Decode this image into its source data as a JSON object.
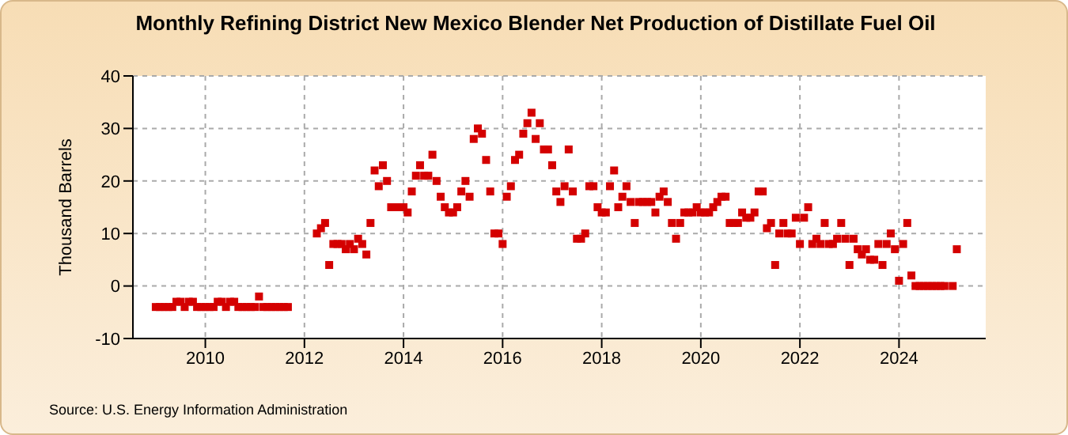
{
  "chart_data": {
    "type": "scatter",
    "title": "Monthly Refining District New Mexico Blender Net Production of Distillate Fuel Oil",
    "ylabel": "Thousand Barrels",
    "annotations": [
      "Source: U.S. Energy Information Administration"
    ],
    "x": [
      "2009-01",
      "2009-02",
      "2009-03",
      "2009-04",
      "2009-05",
      "2009-06",
      "2009-07",
      "2009-08",
      "2009-09",
      "2009-10",
      "2009-11",
      "2009-12",
      "2010-01",
      "2010-02",
      "2010-03",
      "2010-04",
      "2010-05",
      "2010-06",
      "2010-07",
      "2010-08",
      "2010-09",
      "2010-10",
      "2010-11",
      "2010-12",
      "2011-01",
      "2011-02",
      "2011-03",
      "2011-04",
      "2011-05",
      "2011-06",
      "2011-07",
      "2011-08",
      "2011-09",
      "2012-04",
      "2012-05",
      "2012-06",
      "2012-07",
      "2012-08",
      "2012-09",
      "2012-10",
      "2012-11",
      "2012-12",
      "2013-01",
      "2013-02",
      "2013-03",
      "2013-04",
      "2013-05",
      "2013-06",
      "2013-07",
      "2013-08",
      "2013-09",
      "2013-10",
      "2013-11",
      "2013-12",
      "2014-01",
      "2014-02",
      "2014-03",
      "2014-04",
      "2014-05",
      "2014-06",
      "2014-07",
      "2014-08",
      "2014-09",
      "2014-10",
      "2014-11",
      "2014-12",
      "2015-01",
      "2015-02",
      "2015-03",
      "2015-04",
      "2015-05",
      "2015-06",
      "2015-07",
      "2015-08",
      "2015-09",
      "2015-10",
      "2015-11",
      "2015-12",
      "2016-01",
      "2016-02",
      "2016-03",
      "2016-04",
      "2016-05",
      "2016-06",
      "2016-07",
      "2016-08",
      "2016-09",
      "2016-10",
      "2016-11",
      "2016-12",
      "2017-01",
      "2017-02",
      "2017-03",
      "2017-04",
      "2017-05",
      "2017-06",
      "2017-07",
      "2017-08",
      "2017-09",
      "2017-10",
      "2017-11",
      "2017-12",
      "2018-01",
      "2018-02",
      "2018-03",
      "2018-04",
      "2018-05",
      "2018-06",
      "2018-07",
      "2018-08",
      "2018-09",
      "2018-10",
      "2018-11",
      "2018-12",
      "2019-01",
      "2019-02",
      "2019-03",
      "2019-04",
      "2019-05",
      "2019-06",
      "2019-07",
      "2019-08",
      "2019-09",
      "2019-10",
      "2019-11",
      "2019-12",
      "2020-01",
      "2020-02",
      "2020-03",
      "2020-04",
      "2020-05",
      "2020-06",
      "2020-07",
      "2020-08",
      "2020-09",
      "2020-10",
      "2020-11",
      "2020-12",
      "2021-01",
      "2021-02",
      "2021-03",
      "2021-04",
      "2021-05",
      "2021-06",
      "2021-07",
      "2021-08",
      "2021-09",
      "2021-10",
      "2021-11",
      "2021-12",
      "2022-01",
      "2022-02",
      "2022-03",
      "2022-04",
      "2022-05",
      "2022-06",
      "2022-07",
      "2022-08",
      "2022-09",
      "2022-10",
      "2022-11",
      "2022-12",
      "2023-01",
      "2023-02",
      "2023-03",
      "2023-04",
      "2023-05",
      "2023-06",
      "2023-07",
      "2023-08",
      "2023-09",
      "2023-10",
      "2023-11",
      "2023-12",
      "2024-01",
      "2024-02",
      "2024-03",
      "2024-04",
      "2024-05",
      "2024-06",
      "2024-07",
      "2024-08",
      "2024-09",
      "2024-10",
      "2024-11",
      "2024-12",
      "2025-02",
      "2025-03"
    ],
    "series": [
      {
        "color": "#d40000",
        "values": [
          -4,
          -4,
          -4,
          -4,
          -4,
          -3,
          -3,
          -4,
          -3,
          -3,
          -4,
          -4,
          -4,
          -4,
          -4,
          -3,
          -3,
          -4,
          -3,
          -3,
          -4,
          -4,
          -4,
          -4,
          -4,
          -2,
          -4,
          -4,
          -4,
          -4,
          -4,
          -4,
          -4,
          10,
          11,
          12,
          4,
          8,
          8,
          8,
          7,
          8,
          7,
          9,
          8,
          6,
          12,
          22,
          19,
          23,
          20,
          15,
          15,
          15,
          15,
          14,
          18,
          21,
          23,
          21,
          21,
          25,
          20,
          17,
          15,
          14,
          14,
          15,
          18,
          20,
          17,
          28,
          30,
          29,
          24,
          18,
          10,
          10,
          8,
          17,
          19,
          24,
          25,
          29,
          31,
          33,
          28,
          31,
          26,
          26,
          23,
          18,
          16,
          19,
          26,
          18,
          9,
          9,
          10,
          19,
          19,
          15,
          14,
          14,
          19,
          22,
          15,
          17,
          19,
          16,
          12,
          16,
          16,
          16,
          16,
          14,
          17,
          18,
          16,
          12,
          9,
          12,
          14,
          14,
          14,
          15,
          14,
          14,
          14,
          15,
          16,
          17,
          17,
          12,
          12,
          12,
          14,
          13,
          13,
          14,
          18,
          18,
          11,
          12,
          4,
          10,
          12,
          10,
          10,
          13,
          8,
          13,
          15,
          8,
          9,
          8,
          12,
          8,
          8,
          9,
          12,
          9,
          4,
          9,
          7,
          6,
          7,
          5,
          5,
          8,
          4,
          8,
          10,
          7,
          1,
          8,
          12,
          2,
          0,
          0,
          0,
          0,
          0,
          0,
          0,
          0,
          0,
          7
        ]
      }
    ],
    "xlim": [
      "2008-07-15",
      "2025-10-01"
    ],
    "xticks": [
      {
        "value": "2010",
        "label": "2010"
      },
      {
        "value": "2012",
        "label": "2012"
      },
      {
        "value": "2014",
        "label": "2014"
      },
      {
        "value": "2016",
        "label": "2016"
      },
      {
        "value": "2018",
        "label": "2018"
      },
      {
        "value": "2020",
        "label": "2020"
      },
      {
        "value": "2022",
        "label": "2022"
      },
      {
        "value": "2024",
        "label": "2024"
      }
    ],
    "ylim": [
      -10,
      40
    ],
    "yticks": [
      -10,
      0,
      10,
      20,
      30,
      40
    ],
    "grid": true,
    "marker": "square",
    "legend": false
  }
}
